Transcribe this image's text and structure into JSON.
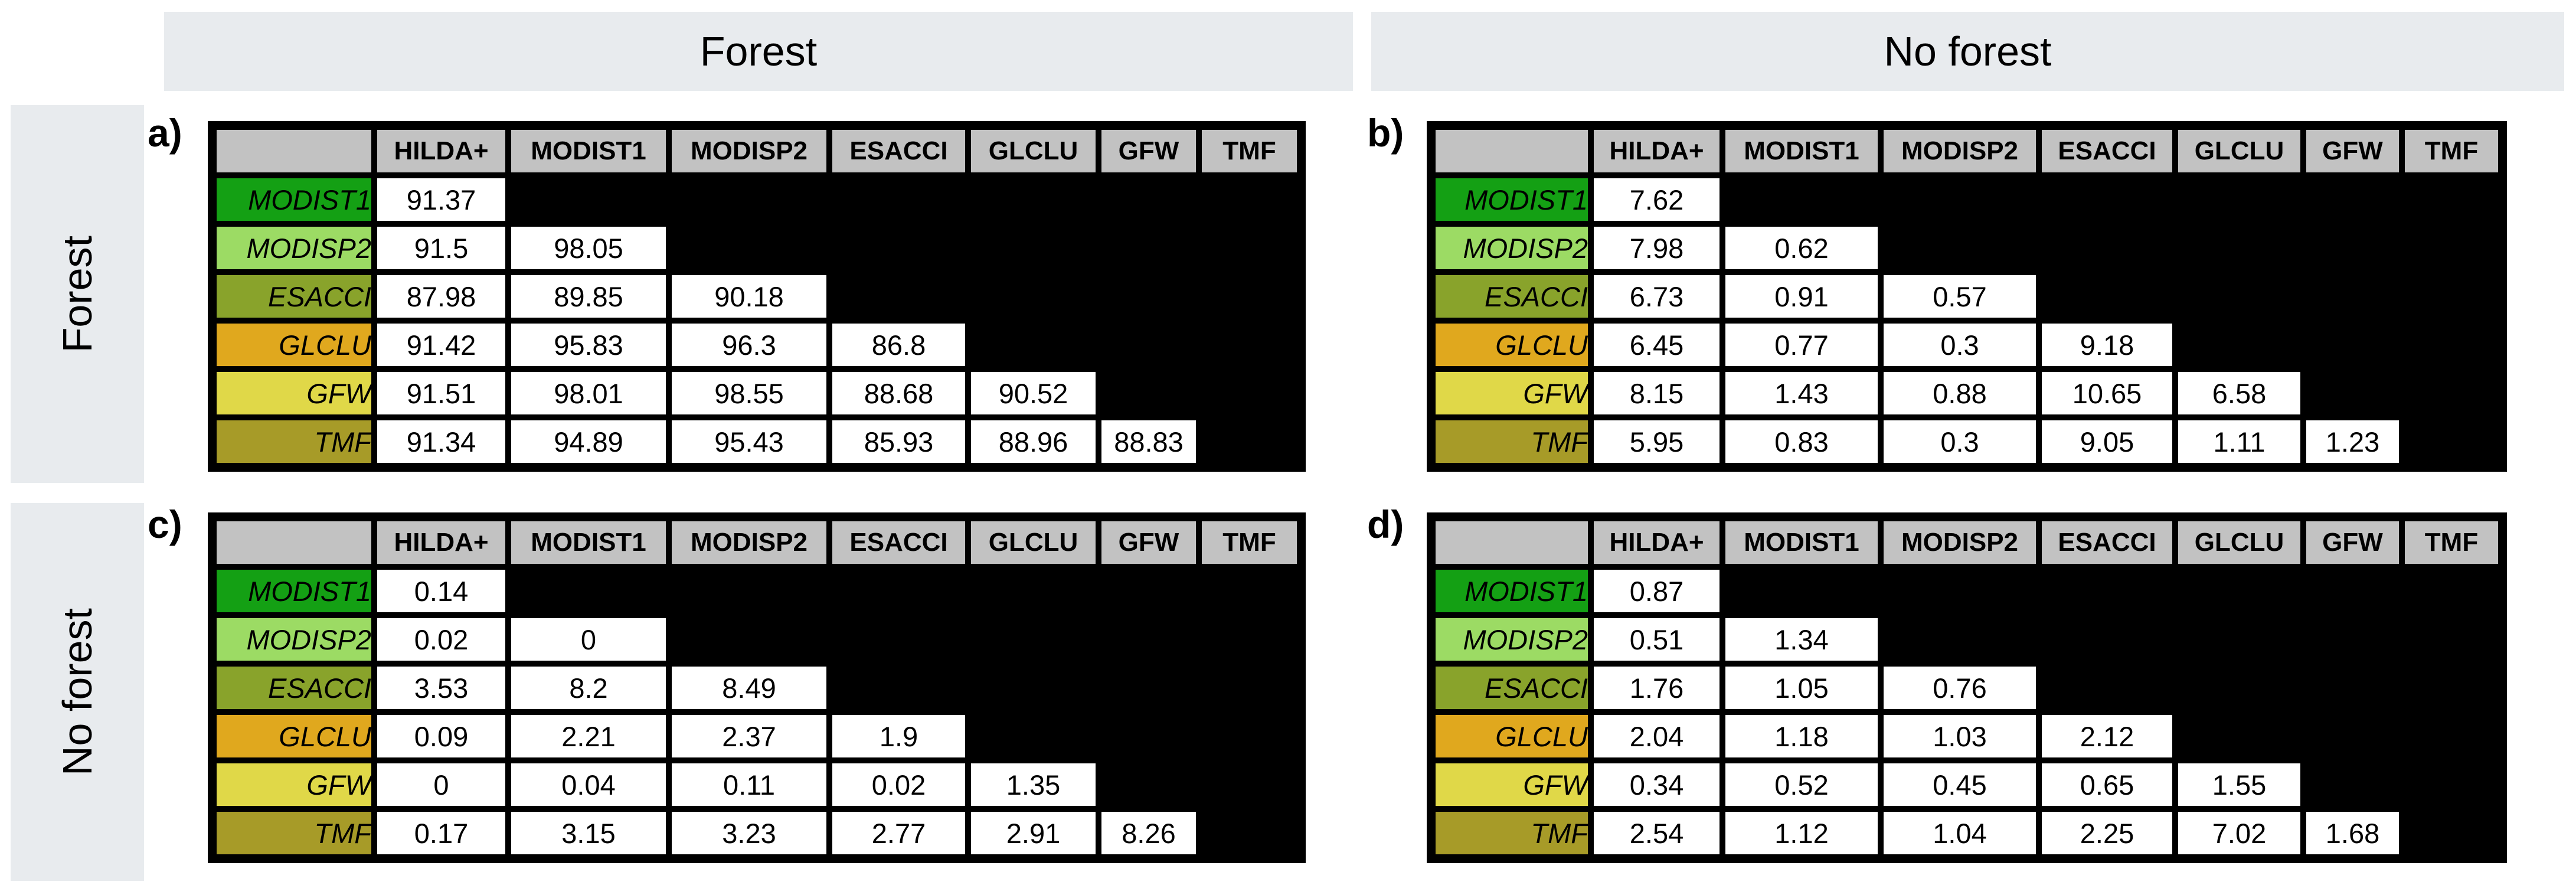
{
  "figure": {
    "description_labels": {
      "top_left": "Forest",
      "top_right": "No forest",
      "side_top": "Forest",
      "side_bottom": "No forest"
    }
  },
  "colors": {
    "band_bg": "#e8ebee",
    "header_cell_bg": "#c2c2c2",
    "empty_cell_bg": "#000000",
    "value_cell_bg": "#ffffff",
    "row_colors": {
      "MODIST1": "#14a014",
      "MODISP2": "#9cdb64",
      "ESACCI": "#89a32b",
      "GLCLU": "#e0a81e",
      "GFW": "#e0d848",
      "TMF": "#a79b28"
    }
  },
  "headers": {
    "top": [
      {
        "label": "Forest"
      },
      {
        "label": "No forest"
      }
    ],
    "side": [
      {
        "label": "Forest"
      },
      {
        "label": "No forest"
      }
    ]
  },
  "columns": [
    "HILDA+",
    "MODIST1",
    "MODISP2",
    "ESACCI",
    "GLCLU",
    "GFW",
    "TMF"
  ],
  "panels": [
    {
      "id": "a",
      "label": "a)",
      "quadrant": {
        "top": "Forest",
        "side": "Forest"
      },
      "rows": [
        {
          "label": "MODIST1",
          "values": [
            "91.37"
          ]
        },
        {
          "label": "MODISP2",
          "values": [
            "91.5",
            "98.05"
          ]
        },
        {
          "label": "ESACCI",
          "values": [
            "87.98",
            "89.85",
            "90.18"
          ]
        },
        {
          "label": "GLCLU",
          "values": [
            "91.42",
            "95.83",
            "96.3",
            "86.8"
          ]
        },
        {
          "label": "GFW",
          "values": [
            "91.51",
            "98.01",
            "98.55",
            "88.68",
            "90.52"
          ]
        },
        {
          "label": "TMF",
          "values": [
            "91.34",
            "94.89",
            "95.43",
            "85.93",
            "88.96",
            "88.83"
          ]
        }
      ]
    },
    {
      "id": "b",
      "label": "b)",
      "quadrant": {
        "top": "No forest",
        "side": "Forest"
      },
      "rows": [
        {
          "label": "MODIST1",
          "values": [
            "7.62"
          ]
        },
        {
          "label": "MODISP2",
          "values": [
            "7.98",
            "0.62"
          ]
        },
        {
          "label": "ESACCI",
          "values": [
            "6.73",
            "0.91",
            "0.57"
          ]
        },
        {
          "label": "GLCLU",
          "values": [
            "6.45",
            "0.77",
            "0.3",
            "9.18"
          ]
        },
        {
          "label": "GFW",
          "values": [
            "8.15",
            "1.43",
            "0.88",
            "10.65",
            "6.58"
          ]
        },
        {
          "label": "TMF",
          "values": [
            "5.95",
            "0.83",
            "0.3",
            "9.05",
            "1.11",
            "1.23"
          ]
        }
      ]
    },
    {
      "id": "c",
      "label": "c)",
      "quadrant": {
        "top": "Forest",
        "side": "No forest"
      },
      "rows": [
        {
          "label": "MODIST1",
          "values": [
            "0.14"
          ]
        },
        {
          "label": "MODISP2",
          "values": [
            "0.02",
            "0"
          ]
        },
        {
          "label": "ESACCI",
          "values": [
            "3.53",
            "8.2",
            "8.49"
          ]
        },
        {
          "label": "GLCLU",
          "values": [
            "0.09",
            "2.21",
            "2.37",
            "1.9"
          ]
        },
        {
          "label": "GFW",
          "values": [
            "0",
            "0.04",
            "0.11",
            "0.02",
            "1.35"
          ]
        },
        {
          "label": "TMF",
          "values": [
            "0.17",
            "3.15",
            "3.23",
            "2.77",
            "2.91",
            "8.26"
          ]
        }
      ]
    },
    {
      "id": "d",
      "label": "d)",
      "quadrant": {
        "top": "No forest",
        "side": "No forest"
      },
      "rows": [
        {
          "label": "MODIST1",
          "values": [
            "0.87"
          ]
        },
        {
          "label": "MODISP2",
          "values": [
            "0.51",
            "1.34"
          ]
        },
        {
          "label": "ESACCI",
          "values": [
            "1.76",
            "1.05",
            "0.76"
          ]
        },
        {
          "label": "GLCLU",
          "values": [
            "2.04",
            "1.18",
            "1.03",
            "2.12"
          ]
        },
        {
          "label": "GFW",
          "values": [
            "0.34",
            "0.52",
            "0.45",
            "0.65",
            "1.55"
          ]
        },
        {
          "label": "TMF",
          "values": [
            "2.54",
            "1.12",
            "1.04",
            "2.25",
            "7.02",
            "1.68"
          ]
        }
      ]
    }
  ]
}
